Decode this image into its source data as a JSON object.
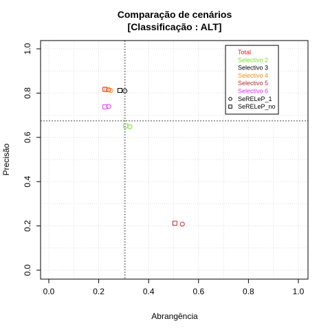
{
  "chart_data": {
    "type": "scatter",
    "title": "Comparação de cenários",
    "subtitle": "[Classificação : ALT]",
    "xlabel": "Abrangência",
    "ylabel": "Precisão",
    "xlim": [
      0,
      1
    ],
    "ylim": [
      0,
      1
    ],
    "x_ticks": [
      "0.0",
      "0.2",
      "0.4",
      "0.6",
      "0.8",
      "1.0"
    ],
    "y_ticks": [
      "0.0",
      "0.2",
      "0.4",
      "0.6",
      "0.8",
      "1.0"
    ],
    "grid": true,
    "reference_lines": {
      "x": 0.305,
      "y": 0.675
    },
    "legend_position": "top-right",
    "series": [
      {
        "name": "Total",
        "color": "#dd2222",
        "points": [
          {
            "x": 0.24,
            "y": 0.815,
            "marker": "circle"
          },
          {
            "x": 0.225,
            "y": 0.817,
            "marker": "square"
          }
        ]
      },
      {
        "name": "Selectivo 2",
        "color": "#77dd33",
        "points": [
          {
            "x": 0.325,
            "y": 0.648,
            "marker": "circle"
          },
          {
            "x": 0.308,
            "y": 0.652,
            "marker": "square"
          }
        ]
      },
      {
        "name": "Selectivo 3",
        "color": "#000000",
        "points": [
          {
            "x": 0.305,
            "y": 0.81,
            "marker": "circle"
          },
          {
            "x": 0.285,
            "y": 0.812,
            "marker": "square"
          }
        ]
      },
      {
        "name": "Selectivo 4",
        "color": "#f09020",
        "points": [
          {
            "x": 0.248,
            "y": 0.812,
            "marker": "circle"
          },
          {
            "x": 0.232,
            "y": 0.815,
            "marker": "square"
          }
        ]
      },
      {
        "name": "Selectivo 5",
        "color": "#b03030",
        "points": [
          {
            "x": 0.535,
            "y": 0.208,
            "marker": "circle"
          },
          {
            "x": 0.505,
            "y": 0.212,
            "marker": "square"
          }
        ]
      },
      {
        "name": "Selectivo 6",
        "color": "#dd33ee",
        "points": [
          {
            "x": 0.24,
            "y": 0.74,
            "marker": "circle"
          },
          {
            "x": 0.225,
            "y": 0.738,
            "marker": "square"
          }
        ]
      }
    ],
    "marker_legend": [
      {
        "name": "SeRELeP_1",
        "marker": "circle"
      },
      {
        "name": "SeRELeP_no",
        "marker": "square"
      }
    ]
  }
}
